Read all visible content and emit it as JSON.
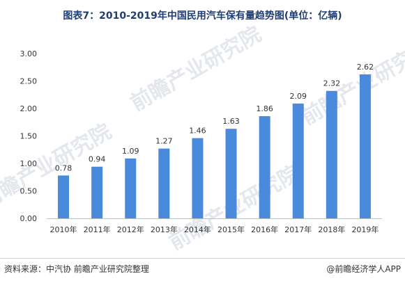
{
  "title": "图表7：2010-2019年中国民用汽车保有量趋势图(单位：亿辆)",
  "source": "资料来源：中汽协 前瞻产业研究院整理",
  "credit": "@前瞻经济学人APP",
  "watermark": "前瞻产业研究院",
  "colors": {
    "bar": "#4a89dc",
    "title": "#1f3e73",
    "axis": "#bfbfbf",
    "text": "#333333"
  },
  "chart_data": {
    "type": "bar",
    "categories": [
      "2010年",
      "2011年",
      "2012年",
      "2013年",
      "2014年",
      "2015年",
      "2016年",
      "2017年",
      "2018年",
      "2019年"
    ],
    "values": [
      0.78,
      0.94,
      1.09,
      1.27,
      1.46,
      1.63,
      1.86,
      2.09,
      2.32,
      2.62
    ],
    "value_labels": [
      "0.78",
      "0.94",
      "1.09",
      "1.27",
      "1.46",
      "1.63",
      "1.86",
      "2.09",
      "2.32",
      "2.62"
    ],
    "yticks": [
      "0.00",
      "0.50",
      "1.00",
      "1.50",
      "2.00",
      "2.50",
      "3.00"
    ],
    "ylim": [
      0,
      3
    ],
    "grid": false,
    "legend": "none"
  }
}
